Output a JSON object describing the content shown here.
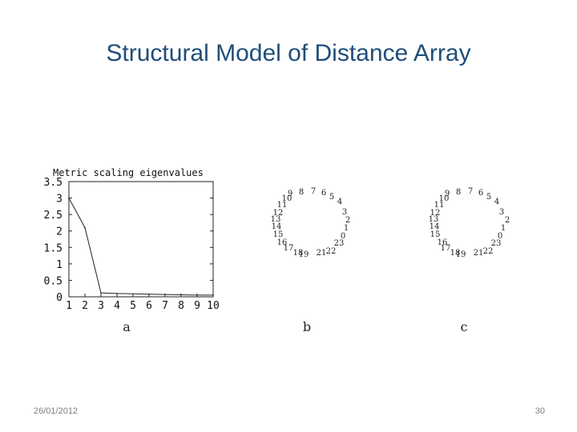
{
  "slide": {
    "title": "Structural Model of Distance Array",
    "date": "26/01/2012",
    "page_number": "30"
  },
  "chart_data": [
    {
      "type": "line",
      "title": "Metric scaling eigenvalues",
      "caption": "a",
      "x": [
        1,
        2,
        3,
        4,
        5,
        6,
        7,
        8,
        9,
        10
      ],
      "series": [
        {
          "values": [
            3.0,
            2.1,
            0.12,
            0.1,
            0.09,
            0.08,
            0.07,
            0.06,
            0.05,
            0.05
          ]
        }
      ],
      "xlim": [
        1,
        10
      ],
      "ylim": [
        0,
        3.5
      ],
      "yticks": [
        "0",
        "0.5",
        "1",
        "1.5",
        "2",
        "2.5",
        "3",
        "3.5"
      ],
      "xticks": [
        "1",
        "2",
        "3",
        "4",
        "5",
        "6",
        "7",
        "8",
        "9",
        "10"
      ]
    },
    {
      "type": "scatter",
      "caption": "b",
      "point_labels": [
        "0",
        "1",
        "2",
        "3",
        "4",
        "5",
        "6",
        "7",
        "8",
        "9",
        "10",
        "11",
        "12",
        "13",
        "14",
        "15",
        "16",
        "17",
        "18",
        "19",
        "21",
        "22",
        "23"
      ]
    },
    {
      "type": "scatter",
      "caption": "c",
      "point_labels": [
        "0",
        "1",
        "2",
        "3",
        "4",
        "5",
        "6",
        "7",
        "8",
        "9",
        "10",
        "11",
        "12",
        "13",
        "14",
        "15",
        "16",
        "17",
        "18",
        "19",
        "21",
        "22",
        "23"
      ]
    }
  ]
}
